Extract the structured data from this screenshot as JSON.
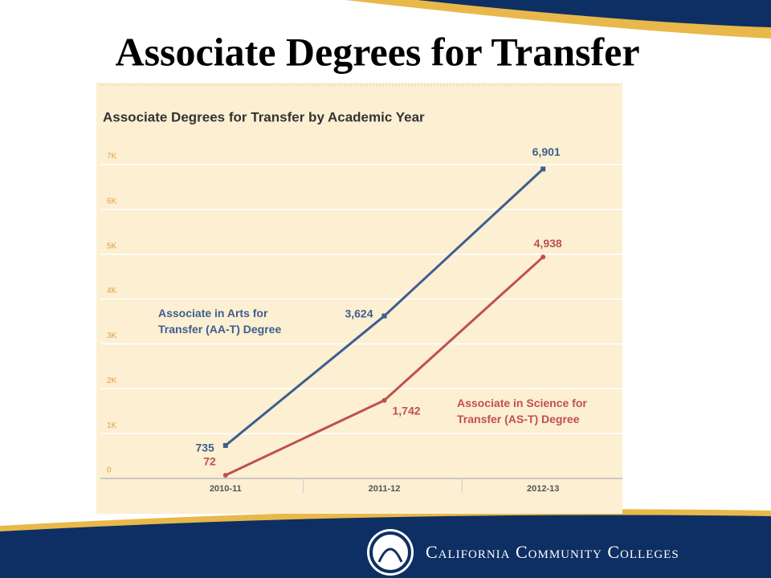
{
  "slide_title": "Associate Degrees for Transfer",
  "footer": "California Community Colleges",
  "chart_data": {
    "type": "line",
    "title": "Associate Degrees for Transfer by Academic Year",
    "categories": [
      "2010-11",
      "2011-12",
      "2012-13"
    ],
    "series": [
      {
        "name": "Associate in Arts for Transfer (AA-T) Degree",
        "color": "#3d5f8f",
        "values": [
          735,
          3624,
          6901
        ],
        "value_labels": [
          "735",
          "3,624",
          "6,901"
        ]
      },
      {
        "name": "Associate in Science for Transfer (AS-T) Degree",
        "color": "#c0504d",
        "values": [
          72,
          1742,
          4938
        ],
        "value_labels": [
          "72",
          "1,742",
          "4,938"
        ]
      }
    ],
    "ylim": [
      0,
      7000
    ],
    "yticks": [
      0,
      {
        "value": 1000,
        "label": "1K"
      },
      {
        "value": 2000,
        "label": "2K"
      },
      {
        "value": 3000,
        "label": "3K"
      },
      {
        "value": 4000,
        "label": "4K"
      },
      {
        "value": 5000,
        "label": "5K"
      },
      {
        "value": 6000,
        "label": "6K"
      },
      {
        "value": 7000,
        "label": "7K"
      }
    ],
    "grid": true
  }
}
